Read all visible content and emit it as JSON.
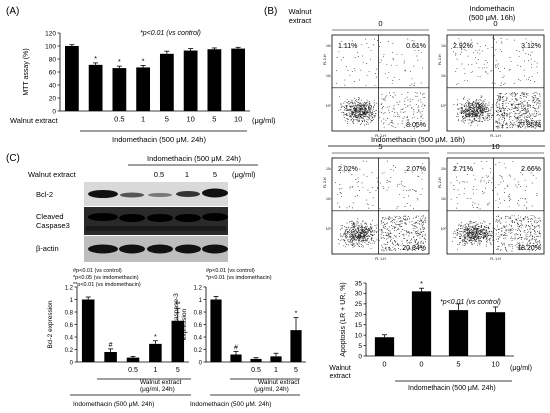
{
  "panels": {
    "a": "(A)",
    "b": "(B)",
    "c": "(C)"
  },
  "mtt": {
    "note": "*p<0.01 (vs control)",
    "unit": "(μg/ml)",
    "row_label": "Walnut extract",
    "group_label": "Indomethacin (500 μM. 24h)"
  },
  "flow": {
    "row_label": "Walnut\nextract",
    "top_header": "Indomethacin\n(500 μM. 16h)",
    "mid_header": "Indomethacin (500 μM. 16h)",
    "axis_y": "FL 2-H",
    "axis_x": "FL 1-H",
    "plots": [
      {
        "dose": "0",
        "ul": "1.11%",
        "ur": "0.61%",
        "lr": "8.05%"
      },
      {
        "dose": "0",
        "ul": "2.92%",
        "ur": "3.12%",
        "lr": "27.85%"
      },
      {
        "dose": "5",
        "ul": "2.02%",
        "ur": "2.07%",
        "lr": "20.34%"
      },
      {
        "dose": "10",
        "ul": "2.71%",
        "ur": "2.66%",
        "lr": "18.20%"
      }
    ]
  },
  "blot": {
    "header": "Indomethacin (500 μM. 24h)",
    "row_label": "Walnut extract",
    "doses": [
      "0.5",
      "1",
      "5"
    ],
    "unit": "(μg/ml)",
    "bands": [
      "Bcl-2",
      "Cleaved\nCaspase3",
      "β-actin"
    ]
  },
  "bcl2": {
    "legend": [
      "#p<0.01 (vs control)",
      "*p<0.05 (vs imdomethacin)",
      "**p<0.01 (vs imdomethacin)"
    ],
    "x_label_1": "Walnut extract",
    "x_label_2": "(μg/ml, 24h)",
    "group_label": "Indomethacin (500 μM. 24h)"
  },
  "casp": {
    "legend": [
      "#p<0.01 (vs control)",
      "*p<0.01 (vs imdomethacin)"
    ],
    "x_label_1": "Walnut extract",
    "x_label_2": "(μg/ml, 24h)",
    "group_label": "Indomethacin (500 μM. 24h)"
  },
  "apop": {
    "note": "*p<0.01 (vs control)",
    "row_label": "Walnut\nextract",
    "unit": "(μg/ml)",
    "group_label": "Indomethacin (500 μM. 24h)"
  },
  "chart_data": [
    {
      "id": "mtt",
      "type": "bar",
      "ylabel": "MTT assay (%)",
      "ylim": [
        0,
        120
      ],
      "yticks": [
        0,
        20,
        40,
        60,
        80,
        100,
        120
      ],
      "categories": [
        "",
        "",
        "0.5",
        "1",
        "5",
        "10",
        "5",
        "10"
      ],
      "values": [
        100,
        71,
        66,
        67,
        88,
        93,
        95,
        96
      ],
      "errors": [
        2,
        3,
        3,
        3,
        4,
        3,
        2,
        2
      ],
      "sig": [
        "",
        "*",
        "*",
        "*",
        "",
        "",
        "",
        ""
      ]
    },
    {
      "id": "bcl2",
      "type": "bar",
      "ylabel": "Bcl-2 expression",
      "ylim": [
        0,
        1.2
      ],
      "yticks": [
        0,
        0.2,
        0.4,
        0.6,
        0.8,
        1,
        1.2
      ],
      "categories": [
        "",
        "",
        "0.5",
        "1",
        "5"
      ],
      "values": [
        1.0,
        0.16,
        0.07,
        0.29,
        0.66
      ],
      "errors": [
        0.04,
        0.05,
        0.02,
        0.05,
        0.2
      ],
      "sig": [
        "",
        "#",
        "",
        "*",
        "**"
      ]
    },
    {
      "id": "casp",
      "type": "bar",
      "ylabel": "Uncleaved caspase-3\nexpression",
      "ylim": [
        0,
        1.2
      ],
      "yticks": [
        0,
        0.2,
        0.4,
        0.6,
        0.8,
        1,
        1.2
      ],
      "categories": [
        "",
        "",
        "0.5",
        "1",
        "5"
      ],
      "values": [
        1.0,
        0.12,
        0.05,
        0.09,
        0.51
      ],
      "errors": [
        0.05,
        0.05,
        0.02,
        0.05,
        0.2
      ],
      "sig": [
        "",
        "#",
        "",
        "",
        "*"
      ]
    },
    {
      "id": "apop",
      "type": "bar",
      "ylabel": "Apoptosis (LR + UR, %)",
      "ylim": [
        0,
        35
      ],
      "yticks": [
        0,
        5,
        10,
        15,
        20,
        25,
        30,
        35
      ],
      "categories": [
        "0",
        "0",
        "5",
        "10"
      ],
      "values": [
        9,
        31,
        22,
        21
      ],
      "errors": [
        1.2,
        1.5,
        3,
        2.5
      ],
      "sig": [
        "",
        "*",
        "",
        ""
      ]
    }
  ]
}
